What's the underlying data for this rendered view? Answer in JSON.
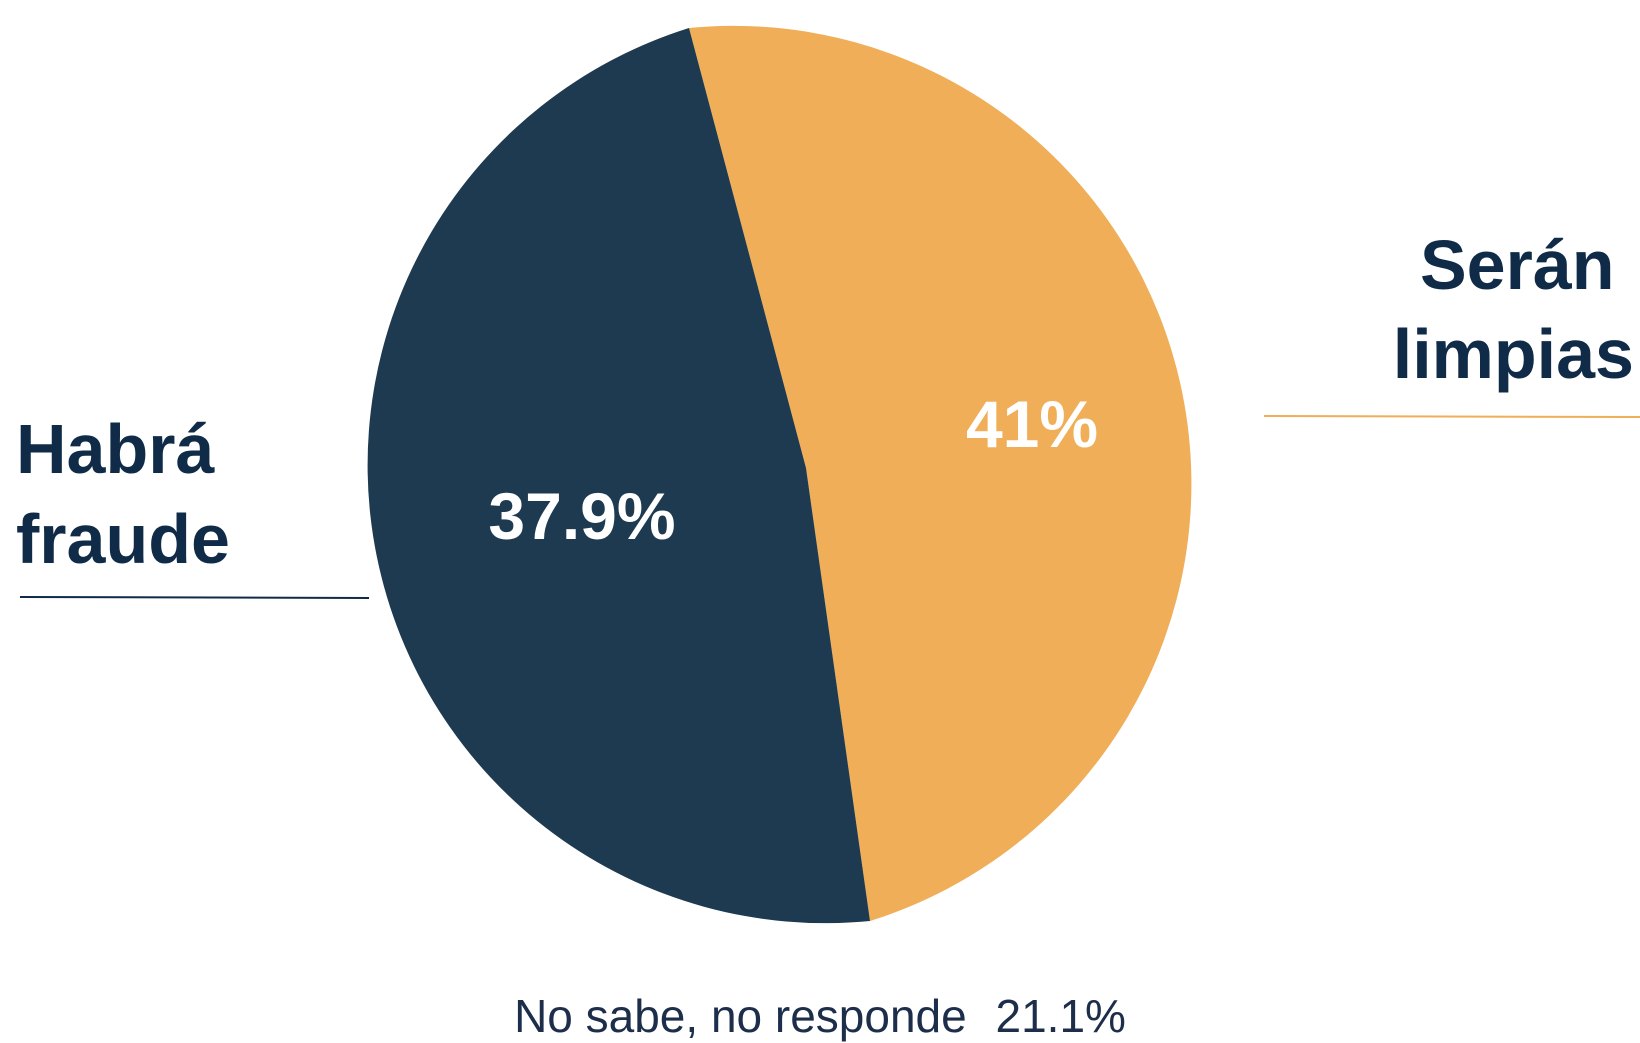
{
  "chart_data": {
    "type": "pie",
    "slices": [
      {
        "label_lines": [
          "Serán",
          "limpias"
        ],
        "value": 41,
        "value_label": "41%",
        "color": "#efae57"
      },
      {
        "label_lines": [
          "Habrá",
          "fraude"
        ],
        "value": 37.9,
        "value_label": "37.9%",
        "color": "#1d3a51"
      }
    ],
    "other": {
      "label": "No sabe, no responde",
      "value": 21.1,
      "value_label": "21.1%"
    }
  },
  "colors": {
    "label_text": "#0f2b47",
    "slice_text": "#ffffff",
    "background": "#ffffff"
  }
}
